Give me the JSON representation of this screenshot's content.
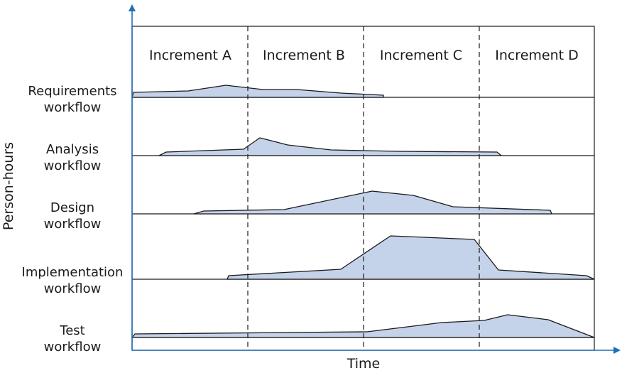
{
  "axes": {
    "y_label": "Person-hours",
    "x_label": "Time",
    "axis_color": "#1f6fb8"
  },
  "increments": [
    "Increment A",
    "Increment B",
    "Increment C",
    "Increment D"
  ],
  "workflows": [
    {
      "label_line1": "Requirements",
      "label_line2": "workflow"
    },
    {
      "label_line1": "Analysis",
      "label_line2": "workflow"
    },
    {
      "label_line1": "Design",
      "label_line2": "workflow"
    },
    {
      "label_line1": "Implementation",
      "label_line2": "workflow"
    },
    {
      "label_line1": "Test",
      "label_line2": "workflow"
    }
  ],
  "colors": {
    "area_fill": "#c5d3ea",
    "line": "#1a1a1a"
  }
}
